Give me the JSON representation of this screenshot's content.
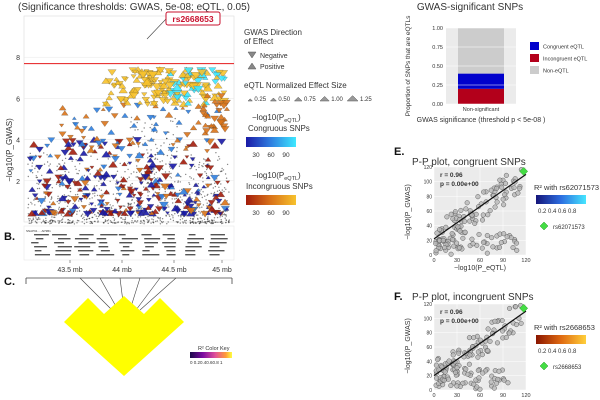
{
  "panels": {
    "a_subtitle": "(Significance thresholds: GWAS, 5e-08; eQTL, 0.05)",
    "b_label": "B.",
    "c_label": "C.",
    "e_label": "E.",
    "f_label": "F.",
    "top_right_title": "GWAS-significant SNPs"
  },
  "legend": {
    "direction_title_1": "GWAS Direction",
    "direction_title_2": "of Effect",
    "negative": "Negative",
    "positive": "Positive",
    "size_title": "eQTL Normalized Effect Size",
    "size_labels": [
      "0.25",
      "0.50",
      "0.75",
      "1.00",
      "1.25"
    ],
    "congruous_title_top": "−log10(P",
    "congruous_title_sub": "eQTL",
    "congruous_title_end": ")",
    "congruous_title": "Congruous SNPs",
    "congruous_ticks": [
      "30",
      "60",
      "90"
    ],
    "incongruous_title": "Incongruous SNPs",
    "incongruous_ticks": [
      "30",
      "60",
      "90"
    ],
    "congruous_colors": [
      "#1a1aa6",
      "#2f7fe0",
      "#3ee8ff"
    ],
    "incongruous_colors": [
      "#a31d0c",
      "#d9731a",
      "#f7c22c"
    ]
  },
  "ld": {
    "color_key_title": "R² Color Key",
    "color_key_ticks": "0 0.20.40.60.8 1",
    "fill_color": "#ffff00"
  },
  "genes_text": "SNAP91  ...  AP3B1",
  "colors": {
    "threshold": "#e41a1c",
    "congruent": "#0000cc",
    "incongruent": "#b3001b",
    "non_eqtl": "#cccccc",
    "pp_green": "#44dd44",
    "callout": "#c8102e"
  },
  "chart_data": [
    {
      "id": "A",
      "type": "scatter",
      "title": "",
      "ylabel": "−log10(P_GWAS)",
      "ylim": [
        0,
        10
      ],
      "yticks": [
        2,
        4,
        6,
        8
      ],
      "xlabel": "",
      "x_ticks": [
        "43.5 mb",
        "44 mb",
        "44.5 mb",
        "45 mb"
      ],
      "threshold_y": 7.3,
      "callout_label": "rs2668653",
      "grid": true
    },
    {
      "id": "D",
      "type": "bar",
      "title": "GWAS-significant SNPs",
      "ylabel": "Proportion of SNPs that are eQTLs",
      "xlabel": "GWAS significance (threshold p < 5e-08 )",
      "categories": [
        "Non-significant"
      ],
      "ylim": [
        0,
        1
      ],
      "yticks": [
        "0.00",
        "0.25",
        "0.50",
        "0.75",
        "1.00"
      ],
      "series": [
        {
          "name": "Congruent eQTL",
          "values": [
            0.2
          ]
        },
        {
          "name": "Incongruent eQTL",
          "values": [
            0.2
          ]
        },
        {
          "name": "Non-eQTL",
          "values": [
            0.6
          ]
        }
      ],
      "legend_position": "right"
    },
    {
      "id": "E",
      "type": "scatter",
      "title": "P-P plot, congruent SNPs",
      "stat_r": "r = 0.96",
      "stat_p": "p = 0.00e+00",
      "xlabel": "−log10(P_eQTL)",
      "ylabel": "−log10(P_GWAS)",
      "xlim": [
        0,
        120
      ],
      "xticks": [
        "0",
        "30",
        "60",
        "90",
        "120"
      ],
      "ylim": [
        0,
        120
      ],
      "yticks": [
        "0",
        "20",
        "40",
        "60",
        "80",
        "100",
        "120"
      ],
      "legend_title": "R² with rs62071573",
      "legend_ticks": "0.2 0.4 0.6 0.8",
      "marker_label": "rs62071573",
      "fit": {
        "x": [
          0,
          120
        ],
        "y": [
          22,
          110
        ]
      }
    },
    {
      "id": "F",
      "type": "scatter",
      "title": "P-P plot, incongruent SNPs",
      "stat_r": "r = 0.96",
      "stat_p": "p = 0.00e+00",
      "xlabel": "",
      "ylabel": "−log10(P_GWAS)",
      "xlim": [
        0,
        120
      ],
      "xticks": [
        "0",
        "30",
        "60",
        "90",
        "120"
      ],
      "ylim": [
        0,
        120
      ],
      "yticks": [
        "0",
        "20",
        "40",
        "60",
        "80",
        "100",
        "120"
      ],
      "legend_title": "R² with rs2668653",
      "legend_ticks": "0.2 0.4 0.6 0.8",
      "marker_label": "rs2668653",
      "fit": {
        "x": [
          0,
          120
        ],
        "y": [
          20,
          110
        ]
      }
    }
  ]
}
